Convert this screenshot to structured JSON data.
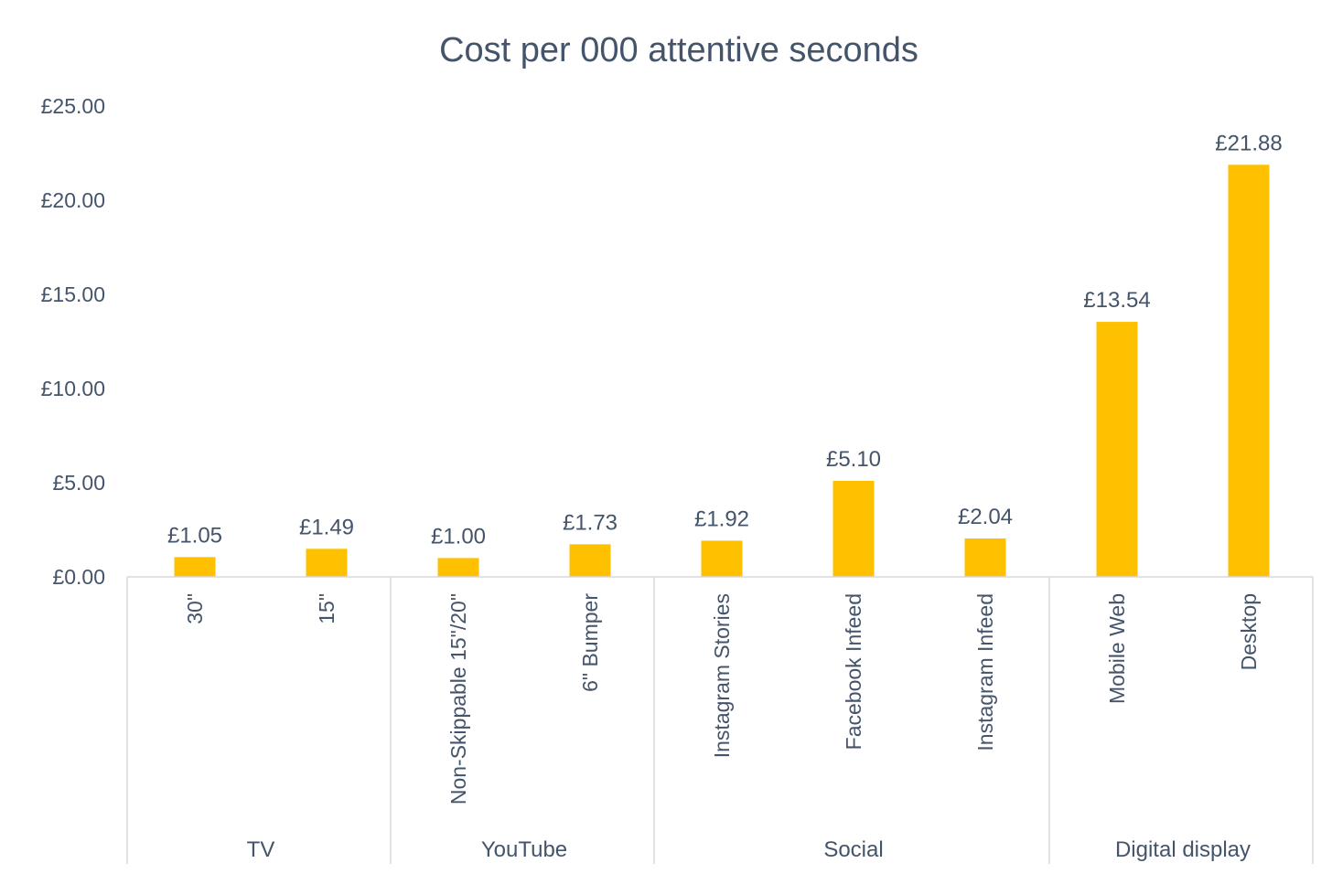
{
  "chart_data": {
    "type": "bar",
    "title": "Cost per 000 attentive seconds",
    "xlabel": "",
    "ylabel": "",
    "ylim": [
      0,
      25
    ],
    "yticks": [
      "£0.00",
      "£5.00",
      "£10.00",
      "£15.00",
      "£20.00",
      "£25.00"
    ],
    "categories": [
      "30\"",
      "15\"",
      "Non-Skippable 15\"/20\"",
      "6\" Bumper",
      "Instagram Stories",
      "Facebook Infeed",
      "Instagram Infeed",
      "Mobile Web",
      "Desktop"
    ],
    "values": [
      1.05,
      1.49,
      1.0,
      1.73,
      1.92,
      5.1,
      2.04,
      13.54,
      21.88
    ],
    "value_labels": [
      "£1.05",
      "£1.49",
      "£1.00",
      "£1.73",
      "£1.92",
      "£5.10",
      "£2.04",
      "£13.54",
      "£21.88"
    ],
    "groups": [
      {
        "name": "TV",
        "count": 2
      },
      {
        "name": "YouTube",
        "count": 2
      },
      {
        "name": "Social",
        "count": 3
      },
      {
        "name": "Digital display",
        "count": 2
      }
    ],
    "grid": false,
    "legend": "none",
    "colors": {
      "bar": "#FFC000",
      "text": "#44546A",
      "axis": "#D9D9D9"
    }
  }
}
